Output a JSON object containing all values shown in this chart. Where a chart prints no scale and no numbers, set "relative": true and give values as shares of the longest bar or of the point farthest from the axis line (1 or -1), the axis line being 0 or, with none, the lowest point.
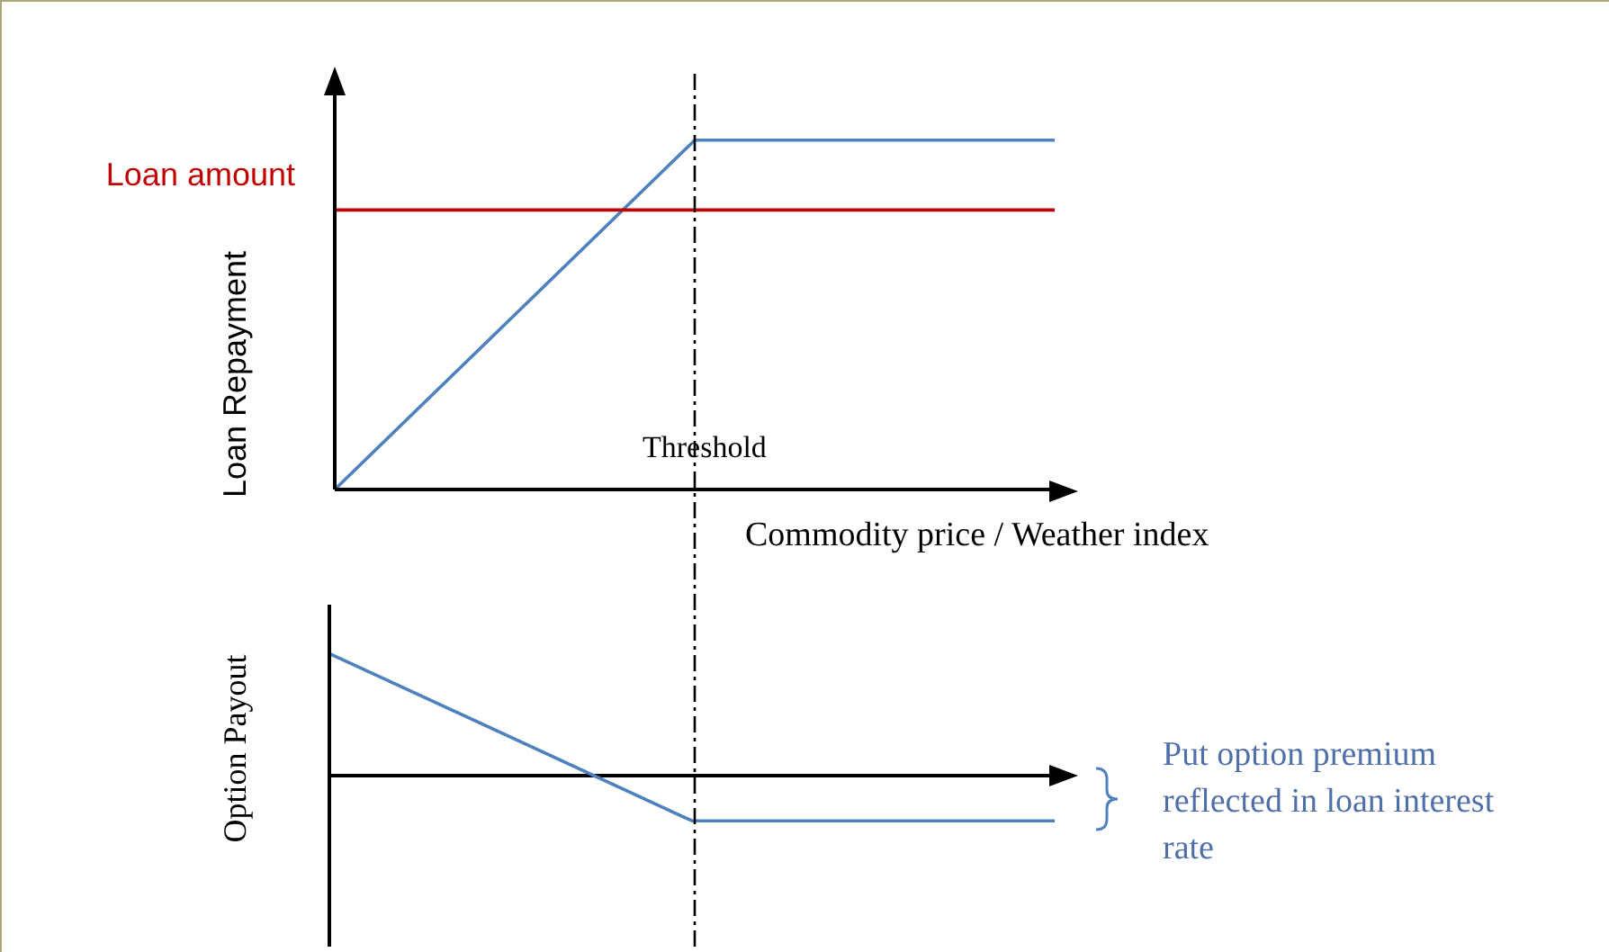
{
  "chart_data": [
    {
      "type": "line",
      "relative": true,
      "ylabel": "Loan Repayment",
      "xlabel": "Commodity price / Weather index",
      "categories": [
        null,
        null,
        null
      ],
      "series": [
        {
          "color": "#4f81bd",
          "values": [
            0,
            1,
            1
          ]
        },
        {
          "name": "Loan amount",
          "color": "#c00000",
          "values": [
            0.8,
            0.8,
            0.8
          ]
        }
      ],
      "annotations": [
        "Threshold"
      ]
    },
    {
      "type": "line",
      "relative": true,
      "ylabel": "Option Payout",
      "categories": [
        null,
        null,
        null
      ],
      "series": [
        {
          "color": "#4f81bd",
          "values": [
            1,
            -0.37,
            -0.37
          ]
        }
      ],
      "annotations": [
        "Put option premium reflected in loan interest rate"
      ]
    }
  ]
}
